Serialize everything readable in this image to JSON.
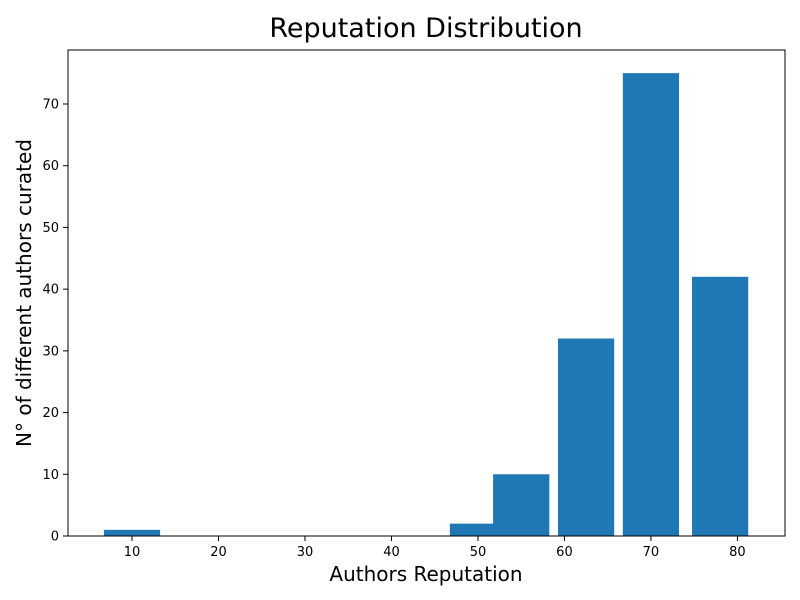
{
  "chart_data": {
    "type": "bar",
    "title": "Reputation Distribution",
    "xlabel": "Authors Reputation",
    "ylabel": "N° of different authors curated",
    "x": [
      10,
      50,
      55,
      62.5,
      70,
      78
    ],
    "values": [
      1,
      2,
      10,
      32,
      75,
      42
    ],
    "bar_width": 6.5,
    "xlim": [
      2.6,
      85.5
    ],
    "ylim": [
      0,
      78.75
    ],
    "xticks": [
      10,
      20,
      30,
      40,
      50,
      60,
      70,
      80
    ],
    "yticks": [
      0,
      10,
      20,
      30,
      40,
      50,
      60,
      70
    ],
    "bar_color": "#1f77b4",
    "grid": false,
    "legend": "none"
  }
}
